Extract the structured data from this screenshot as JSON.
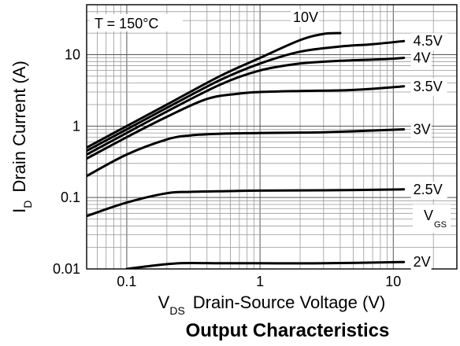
{
  "chart_data": {
    "type": "line",
    "title": "Output Characteristics",
    "xlabel": {
      "symbol": "V",
      "subscript": "DS",
      "text": "Drain-Source Voltage (V)"
    },
    "ylabel": {
      "symbol": "I",
      "subscript": "D",
      "text": "Drain Current (A)"
    },
    "x_scale": "log",
    "y_scale": "log",
    "xlim": [
      0.05,
      30
    ],
    "ylim": [
      0.01,
      50
    ],
    "x_ticks": [
      {
        "value": 0.1,
        "label": "0.1"
      },
      {
        "value": 1,
        "label": "1"
      },
      {
        "value": 10,
        "label": "10"
      }
    ],
    "y_ticks": [
      {
        "value": 0.01,
        "label": "0.01"
      },
      {
        "value": 0.1,
        "label": "0.1"
      },
      {
        "value": 1,
        "label": "1"
      },
      {
        "value": 10,
        "label": "10"
      }
    ],
    "grid": true,
    "annotations": {
      "temperature": "T = 150°C",
      "vgs_label": {
        "symbol": "V",
        "subscript": "GS"
      }
    },
    "series": [
      {
        "name": "10V",
        "x": [
          0.05,
          0.1,
          0.2,
          0.5,
          1,
          2,
          3,
          4
        ],
        "y": [
          0.5,
          1.0,
          2.0,
          5.0,
          9.0,
          16.0,
          19.5,
          20.0
        ]
      },
      {
        "name": "4.5V",
        "x": [
          0.05,
          0.1,
          0.2,
          0.5,
          1,
          2,
          4,
          7,
          12
        ],
        "y": [
          0.45,
          0.9,
          1.8,
          4.4,
          7.5,
          11.0,
          13.0,
          14.0,
          15.5
        ]
      },
      {
        "name": "4V",
        "x": [
          0.05,
          0.1,
          0.2,
          0.5,
          1,
          2,
          4,
          8,
          12
        ],
        "y": [
          0.4,
          0.8,
          1.6,
          3.8,
          6.0,
          7.5,
          8.2,
          8.6,
          9.0
        ]
      },
      {
        "name": "3.5V",
        "x": [
          0.05,
          0.1,
          0.2,
          0.4,
          0.7,
          1,
          2,
          5,
          12
        ],
        "y": [
          0.35,
          0.7,
          1.35,
          2.4,
          2.85,
          3.0,
          3.1,
          3.2,
          3.6
        ]
      },
      {
        "name": "3V",
        "x": [
          0.05,
          0.1,
          0.2,
          0.3,
          0.5,
          1,
          3,
          12
        ],
        "y": [
          0.2,
          0.4,
          0.65,
          0.74,
          0.78,
          0.8,
          0.82,
          0.9
        ]
      },
      {
        "name": "2.5V",
        "x": [
          0.05,
          0.1,
          0.2,
          0.3,
          0.6,
          1,
          3,
          12
        ],
        "y": [
          0.055,
          0.085,
          0.115,
          0.12,
          0.123,
          0.125,
          0.126,
          0.13
        ]
      },
      {
        "name": "2V",
        "x": [
          0.1,
          0.15,
          0.25,
          0.5,
          1,
          3,
          12
        ],
        "y": [
          0.01,
          0.011,
          0.012,
          0.012,
          0.012,
          0.012,
          0.0125
        ]
      }
    ]
  }
}
